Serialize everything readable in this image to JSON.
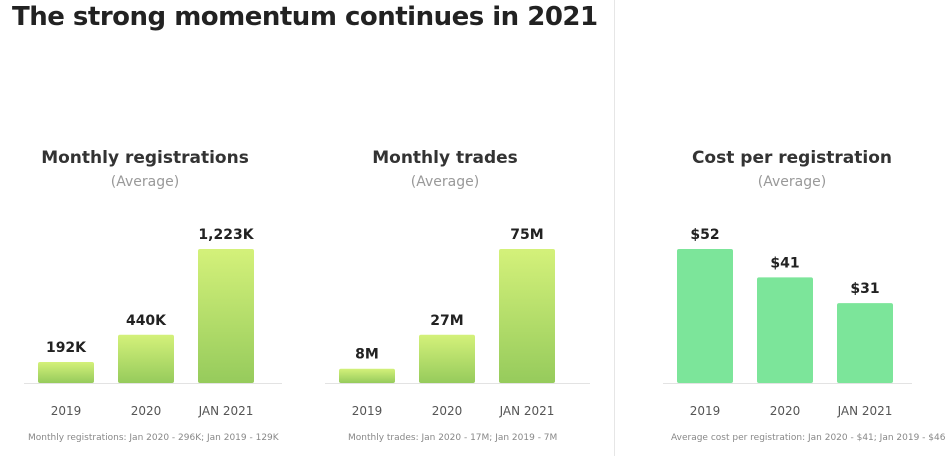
{
  "page": {
    "title": "The strong momentum continues in 2021"
  },
  "colors": {
    "green_top": "#d4f17a",
    "green_bottom": "#96cb5c",
    "mint": "#7ce59a",
    "baseline": "#e3e3e3"
  },
  "chart_data": [
    {
      "type": "bar",
      "title": "Monthly registrations",
      "subtitle": "(Average)",
      "categories": [
        "2019",
        "2020",
        "JAN 2021"
      ],
      "values": [
        192,
        440,
        1223
      ],
      "value_labels": [
        "192K",
        "440K",
        "1,223K"
      ],
      "unit": "K",
      "ylim": [
        0,
        1223
      ],
      "footnote": "Monthly registrations: Jan 2020 - 296K; Jan 2019 - 129K"
    },
    {
      "type": "bar",
      "title": "Monthly trades",
      "subtitle": "(Average)",
      "categories": [
        "2019",
        "2020",
        "JAN 2021"
      ],
      "values": [
        8,
        27,
        75
      ],
      "value_labels": [
        "8M",
        "27M",
        "75M"
      ],
      "unit": "M",
      "ylim": [
        0,
        75
      ],
      "footnote": "Monthly trades: Jan 2020 - 17M; Jan 2019 - 7M"
    },
    {
      "type": "bar",
      "title": "Cost per registration",
      "subtitle": "(Average)",
      "categories": [
        "2019",
        "2020",
        "JAN 2021"
      ],
      "values": [
        52,
        41,
        31
      ],
      "value_labels": [
        "$52",
        "$41",
        "$31"
      ],
      "unit": "$",
      "ylim": [
        0,
        52
      ],
      "footnote": "Average cost per registration: Jan 2020 - $41; Jan 2019 - $46"
    }
  ]
}
